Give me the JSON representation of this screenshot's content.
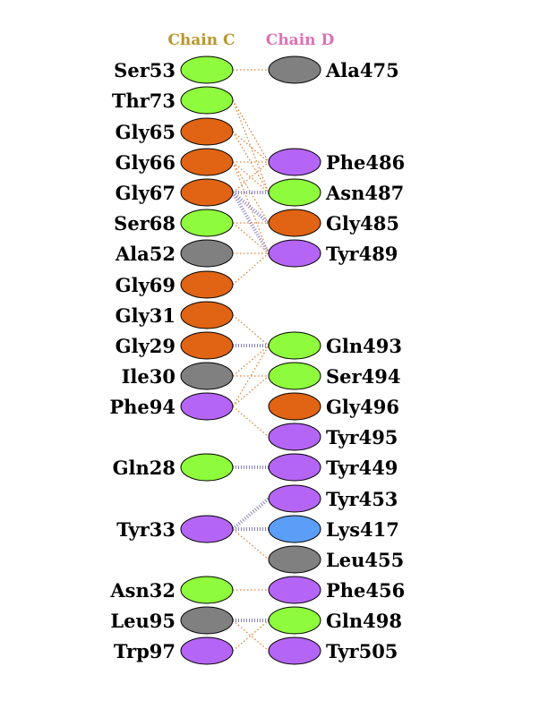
{
  "headers": {
    "chain_c": "Chain C",
    "chain_d": "Chain D",
    "chain_c_color": "#b8972e",
    "chain_d_color": "#e070b8"
  },
  "colors": {
    "polar": "#8efc3c",
    "glycine": "#e06414",
    "hydrophobic": "#808080",
    "aromatic": "#b565f5",
    "positive": "#5b9ef7",
    "hbond_line": "#8a82c0",
    "contact_line": "#e0803a"
  },
  "chain_c": [
    {
      "id": "Ser53",
      "label": "Ser53",
      "type": "polar"
    },
    {
      "id": "Thr73",
      "label": "Thr73",
      "type": "polar"
    },
    {
      "id": "Gly65",
      "label": "Gly65",
      "type": "glycine"
    },
    {
      "id": "Gly66",
      "label": "Gly66",
      "type": "glycine"
    },
    {
      "id": "Gly67",
      "label": "Gly67",
      "type": "glycine"
    },
    {
      "id": "Ser68",
      "label": "Ser68",
      "type": "polar"
    },
    {
      "id": "Ala52",
      "label": "Ala52",
      "type": "hydrophobic"
    },
    {
      "id": "Gly69",
      "label": "Gly69",
      "type": "glycine"
    },
    {
      "id": "Gly31",
      "label": "Gly31",
      "type": "glycine"
    },
    {
      "id": "Gly29",
      "label": "Gly29",
      "type": "glycine"
    },
    {
      "id": "Ile30",
      "label": "Ile30",
      "type": "hydrophobic"
    },
    {
      "id": "Phe94",
      "label": "Phe94",
      "type": "aromatic"
    },
    {
      "id": "Gln28",
      "label": "Gln28",
      "type": "polar"
    },
    {
      "id": "Tyr33",
      "label": "Tyr33",
      "type": "aromatic"
    },
    {
      "id": "Asn32",
      "label": "Asn32",
      "type": "polar"
    },
    {
      "id": "Leu95",
      "label": "Leu95",
      "type": "hydrophobic"
    },
    {
      "id": "Trp97",
      "label": "Trp97",
      "type": "aromatic"
    }
  ],
  "chain_d": [
    {
      "id": "Ala475",
      "label": "Ala475",
      "type": "hydrophobic"
    },
    {
      "id": "Phe486",
      "label": "Phe486",
      "type": "aromatic"
    },
    {
      "id": "Asn487",
      "label": "Asn487",
      "type": "polar"
    },
    {
      "id": "Gly485",
      "label": "Gly485",
      "type": "glycine"
    },
    {
      "id": "Tyr489",
      "label": "Tyr489",
      "type": "aromatic"
    },
    {
      "id": "Gln493",
      "label": "Gln493",
      "type": "polar"
    },
    {
      "id": "Ser494",
      "label": "Ser494",
      "type": "polar"
    },
    {
      "id": "Gly496",
      "label": "Gly496",
      "type": "glycine"
    },
    {
      "id": "Tyr495",
      "label": "Tyr495",
      "type": "aromatic"
    },
    {
      "id": "Tyr449",
      "label": "Tyr449",
      "type": "aromatic"
    },
    {
      "id": "Tyr453",
      "label": "Tyr453",
      "type": "aromatic"
    },
    {
      "id": "Lys417",
      "label": "Lys417",
      "type": "positive"
    },
    {
      "id": "Leu455",
      "label": "Leu455",
      "type": "hydrophobic"
    },
    {
      "id": "Phe456",
      "label": "Phe456",
      "type": "aromatic"
    },
    {
      "id": "Gln498",
      "label": "Gln498",
      "type": "polar"
    },
    {
      "id": "Tyr505",
      "label": "Tyr505",
      "type": "aromatic"
    }
  ],
  "links": [
    {
      "from": "Ser53",
      "to": "Ala475",
      "kind": "contact"
    },
    {
      "from": "Thr73",
      "to": "Phe486",
      "kind": "contact"
    },
    {
      "from": "Thr73",
      "to": "Asn487",
      "kind": "contact"
    },
    {
      "from": "Gly65",
      "to": "Phe486",
      "kind": "contact"
    },
    {
      "from": "Gly65",
      "to": "Asn487",
      "kind": "contact"
    },
    {
      "from": "Gly66",
      "to": "Phe486",
      "kind": "contact"
    },
    {
      "from": "Gly66",
      "to": "Asn487",
      "kind": "contact"
    },
    {
      "from": "Gly66",
      "to": "Gly485",
      "kind": "contact"
    },
    {
      "from": "Gly66",
      "to": "Tyr489",
      "kind": "contact"
    },
    {
      "from": "Gly67",
      "to": "Phe486",
      "kind": "contact"
    },
    {
      "from": "Gly67",
      "to": "Asn487",
      "kind": "hbond"
    },
    {
      "from": "Gly67",
      "to": "Gly485",
      "kind": "hbond"
    },
    {
      "from": "Gly67",
      "to": "Tyr489",
      "kind": "hbond"
    },
    {
      "from": "Ser68",
      "to": "Gly485",
      "kind": "contact"
    },
    {
      "from": "Ser68",
      "to": "Tyr489",
      "kind": "contact"
    },
    {
      "from": "Ala52",
      "to": "Tyr489",
      "kind": "contact"
    },
    {
      "from": "Gly69",
      "to": "Tyr489",
      "kind": "contact"
    },
    {
      "from": "Gly31",
      "to": "Gln493",
      "kind": "contact"
    },
    {
      "from": "Gly29",
      "to": "Gln493",
      "kind": "hbond"
    },
    {
      "from": "Ile30",
      "to": "Gln493",
      "kind": "contact"
    },
    {
      "from": "Ile30",
      "to": "Ser494",
      "kind": "contact"
    },
    {
      "from": "Phe94",
      "to": "Gln493",
      "kind": "contact"
    },
    {
      "from": "Phe94",
      "to": "Ser494",
      "kind": "contact"
    },
    {
      "from": "Phe94",
      "to": "Tyr495",
      "kind": "contact"
    },
    {
      "from": "Gln28",
      "to": "Tyr449",
      "kind": "hbond"
    },
    {
      "from": "Tyr33",
      "to": "Tyr453",
      "kind": "hbond"
    },
    {
      "from": "Tyr33",
      "to": "Lys417",
      "kind": "hbond"
    },
    {
      "from": "Tyr33",
      "to": "Leu455",
      "kind": "contact"
    },
    {
      "from": "Asn32",
      "to": "Phe456",
      "kind": "contact"
    },
    {
      "from": "Leu95",
      "to": "Gln498",
      "kind": "hbond"
    },
    {
      "from": "Leu95",
      "to": "Tyr505",
      "kind": "contact"
    },
    {
      "from": "Trp97",
      "to": "Gln498",
      "kind": "contact"
    }
  ]
}
